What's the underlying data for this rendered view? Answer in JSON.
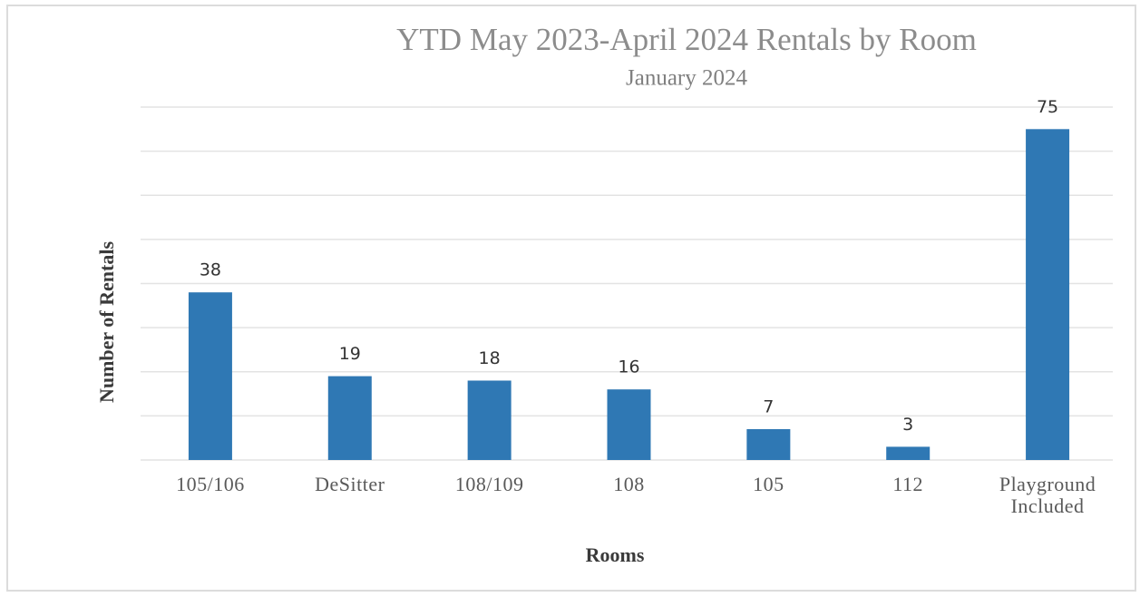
{
  "chart_data": {
    "type": "bar",
    "title": "YTD May 2023-April 2024 Rentals by Room",
    "subtitle": "January 2024",
    "x_label": "Rooms",
    "y_label": "Number of Rentals",
    "categories": [
      "105/106",
      "DeSitter",
      "108/109",
      "108",
      "105",
      "112",
      "Playground Included"
    ],
    "values": [
      38,
      19,
      18,
      16,
      7,
      3,
      75
    ],
    "color": "#2f78b4",
    "ylim": [
      0,
      80
    ],
    "yticks": [
      0,
      10,
      20,
      30,
      40,
      50,
      60,
      70,
      80
    ],
    "grid": true
  }
}
